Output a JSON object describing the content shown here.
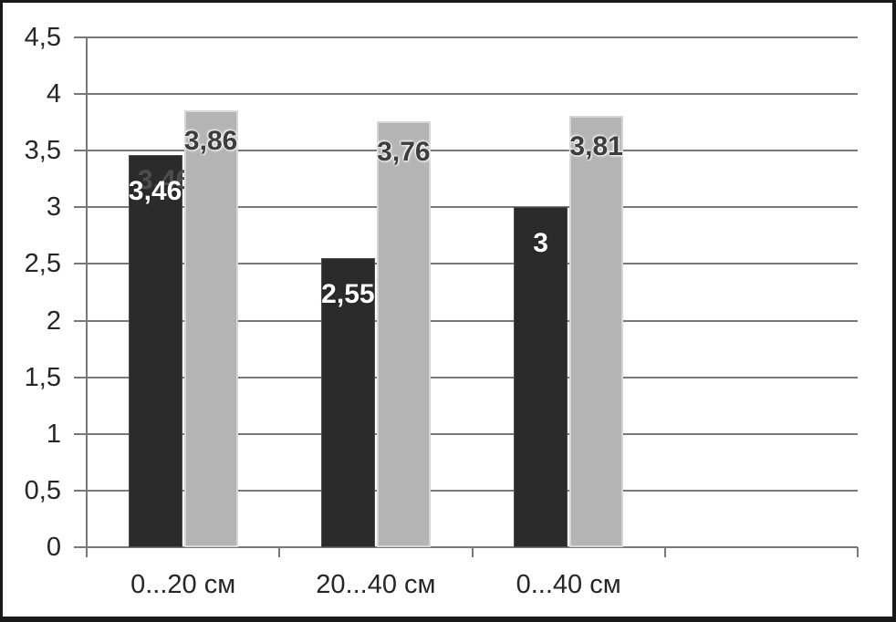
{
  "chart_data": {
    "type": "bar",
    "title": "",
    "categories": [
      "0...20 см",
      "20...40 см",
      "0...40 см"
    ],
    "series": [
      {
        "color": "#2b2b2b",
        "values": [
          3.46,
          2.55,
          3
        ],
        "value_labels": [
          "3,46",
          "2,55",
          "3"
        ],
        "label_color": "#ffffff"
      },
      {
        "color": "#b4b4b4",
        "values": [
          3.86,
          3.76,
          3.81
        ],
        "value_labels": [
          "3,86",
          "3,76",
          "3,81"
        ],
        "label_color": "#3d3d3d"
      }
    ],
    "ylim": [
      0,
      4.5
    ],
    "yticks": [
      {
        "v": 0,
        "label": "0"
      },
      {
        "v": 0.5,
        "label": "0,5"
      },
      {
        "v": 1,
        "label": "1"
      },
      {
        "v": 1.5,
        "label": "1,5"
      },
      {
        "v": 2,
        "label": "2"
      },
      {
        "v": 2.5,
        "label": "2,5"
      },
      {
        "v": 3,
        "label": "3"
      },
      {
        "v": 3.5,
        "label": "3,5"
      },
      {
        "v": 4,
        "label": "4"
      },
      {
        "v": 4.5,
        "label": "4,5"
      }
    ],
    "grid": true,
    "legend": "none",
    "x_slots": 4,
    "frame_border_color": "#191919",
    "gridline_color": "#787878",
    "axis_text_color": "#262626"
  }
}
